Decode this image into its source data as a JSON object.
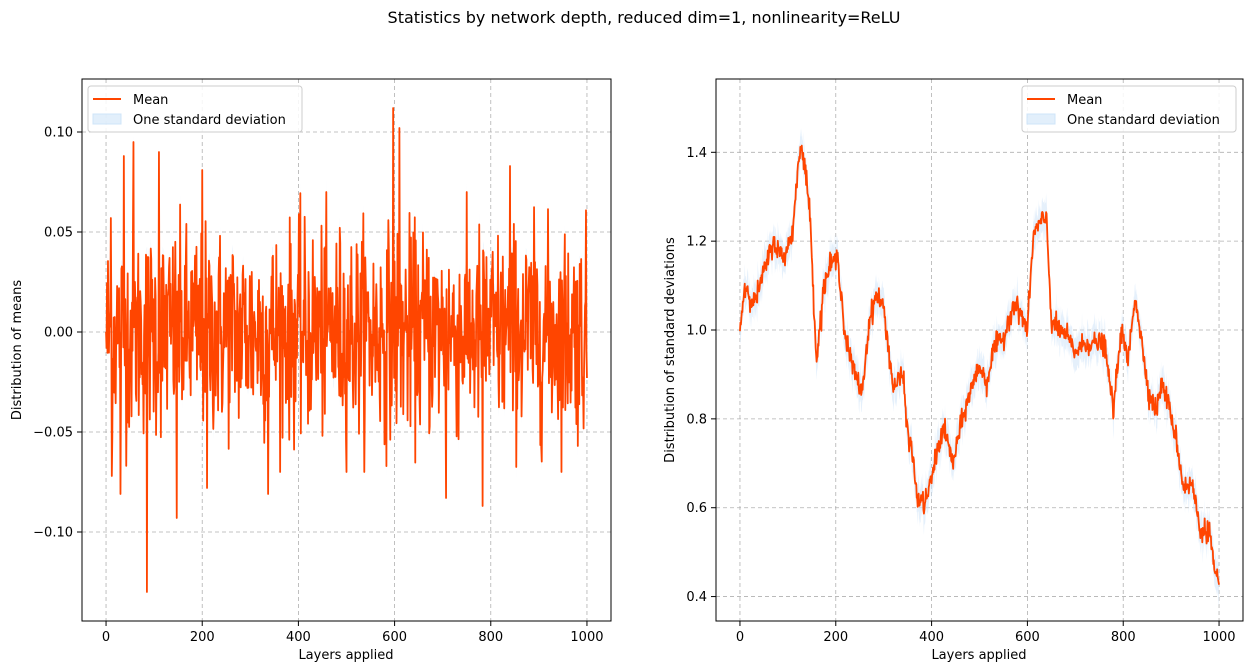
{
  "figure_title": "Statistics by network depth, reduced dim=1, nonlinearity=ReLU",
  "colors": {
    "mean": "#ff4500",
    "band": "#cfe4f8",
    "grid": "#b0b0b0",
    "legend_border": "#cccccc"
  },
  "chart_data": [
    {
      "type": "line",
      "xlabel": "Layers applied",
      "ylabel": "Distribution of means",
      "xlim": [
        -50,
        1050
      ],
      "ylim": [
        -0.1445,
        0.1265
      ],
      "xticks": [
        0,
        200,
        400,
        600,
        800,
        1000
      ],
      "yticks": [
        -0.1,
        -0.05,
        0.0,
        0.05,
        0.1
      ],
      "ytick_labels": [
        "−0.10",
        "−0.05",
        "0.00",
        "0.05",
        "0.10"
      ],
      "grid": true,
      "legend": {
        "location": "upper-left",
        "entries": [
          "Mean",
          "One standard deviation"
        ]
      },
      "series": [
        {
          "name": "Mean",
          "noise_like": true,
          "x_range": [
            0,
            1000
          ],
          "approx_std": 0.03,
          "band_halfwidth": 0.004,
          "notable_points": [
            {
              "x": 0,
              "y": 0.0
            },
            {
              "x": 10,
              "y": 0.057
            },
            {
              "x": 12,
              "y": -0.072
            },
            {
              "x": 30,
              "y": -0.081
            },
            {
              "x": 37,
              "y": 0.088
            },
            {
              "x": 57,
              "y": 0.095
            },
            {
              "x": 85,
              "y": -0.13
            },
            {
              "x": 110,
              "y": 0.09
            },
            {
              "x": 147,
              "y": -0.093
            },
            {
              "x": 200,
              "y": 0.081
            },
            {
              "x": 210,
              "y": -0.078
            },
            {
              "x": 337,
              "y": -0.081
            },
            {
              "x": 597,
              "y": 0.112
            },
            {
              "x": 610,
              "y": 0.102
            },
            {
              "x": 707,
              "y": -0.083
            },
            {
              "x": 783,
              "y": -0.087
            },
            {
              "x": 840,
              "y": 0.083
            },
            {
              "x": 1000,
              "y": -0.023
            }
          ]
        }
      ]
    },
    {
      "type": "line",
      "xlabel": "Layers applied",
      "ylabel": "Distribution of standard deviations",
      "xlim": [
        -50,
        1050
      ],
      "ylim": [
        0.345,
        1.565
      ],
      "xticks": [
        0,
        200,
        400,
        600,
        800,
        1000
      ],
      "yticks": [
        0.4,
        0.6,
        0.8,
        1.0,
        1.2,
        1.4
      ],
      "ytick_labels": [
        "0.4",
        "0.6",
        "0.8",
        "1.0",
        "1.2",
        "1.4"
      ],
      "grid": true,
      "legend": {
        "location": "upper-right",
        "entries": [
          "Mean",
          "One standard deviation"
        ]
      },
      "series": [
        {
          "name": "Mean",
          "band_halfwidth": 0.035,
          "x": [
            0,
            10,
            30,
            50,
            70,
            90,
            110,
            125,
            135,
            145,
            160,
            175,
            190,
            205,
            220,
            240,
            255,
            270,
            285,
            300,
            320,
            340,
            350,
            360,
            370,
            385,
            395,
            410,
            425,
            445,
            460,
            480,
            500,
            515,
            530,
            550,
            570,
            585,
            600,
            612,
            625,
            640,
            650,
            665,
            680,
            700,
            720,
            740,
            760,
            780,
            795,
            810,
            825,
            840,
            855,
            870,
            880,
            890,
            910,
            925,
            945,
            960,
            980,
            990,
            1000
          ],
          "y": [
            1.0,
            1.1,
            1.06,
            1.13,
            1.2,
            1.16,
            1.22,
            1.42,
            1.37,
            1.28,
            0.93,
            1.1,
            1.15,
            1.16,
            0.98,
            0.9,
            0.86,
            1.02,
            1.08,
            1.05,
            0.87,
            0.9,
            0.77,
            0.72,
            0.62,
            0.61,
            0.64,
            0.72,
            0.78,
            0.7,
            0.78,
            0.86,
            0.92,
            0.88,
            0.96,
            0.98,
            1.06,
            1.04,
            1.0,
            1.21,
            1.24,
            1.25,
            1.02,
            1.0,
            0.99,
            0.95,
            0.97,
            0.97,
            0.97,
            0.82,
            1.0,
            0.93,
            1.08,
            0.96,
            0.85,
            0.82,
            0.88,
            0.85,
            0.76,
            0.65,
            0.65,
            0.55,
            0.55,
            0.46,
            0.42
          ]
        }
      ]
    }
  ]
}
